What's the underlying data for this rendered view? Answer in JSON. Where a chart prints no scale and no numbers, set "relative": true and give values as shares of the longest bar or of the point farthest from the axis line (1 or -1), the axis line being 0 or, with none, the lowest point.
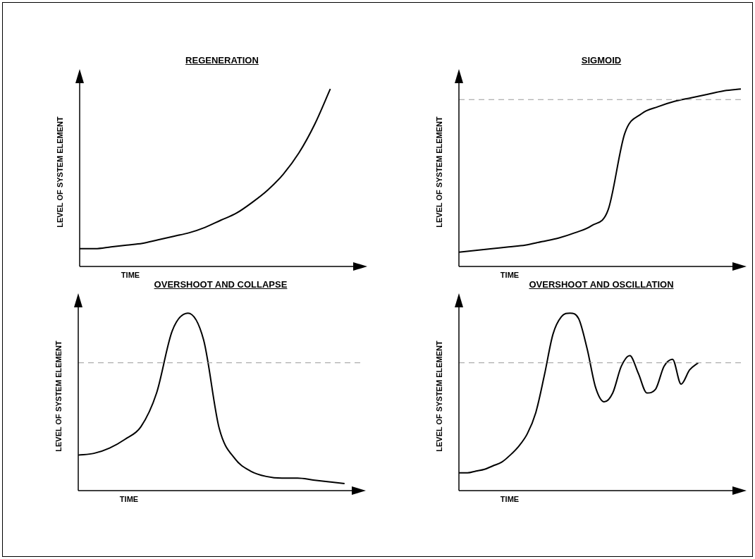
{
  "chart_data": [
    {
      "type": "line",
      "title": "REGENERATION",
      "xlabel": "TIME",
      "ylabel": "LEVEL OF SYSTEM ELEMENT",
      "relative": true,
      "legend": false,
      "grid": false,
      "marker": "none",
      "categories": [
        null,
        null,
        null,
        null,
        null,
        null,
        null,
        null,
        null,
        null,
        null,
        null,
        null,
        null,
        null,
        null,
        null,
        null,
        null
      ],
      "series": [
        {
          "color": "#000000",
          "values": [
            0.1,
            0.1,
            0.11,
            0.12,
            0.13,
            0.15,
            0.17,
            0.19,
            0.22,
            0.26,
            0.3,
            0.36,
            0.43,
            0.52,
            0.64,
            0.8,
            1,
            null,
            null
          ]
        }
      ]
    },
    {
      "type": "line",
      "title": "SIGMOID",
      "xlabel": "TIME",
      "ylabel": "LEVEL OF SYSTEM ELEMENT",
      "relative": true,
      "legend": false,
      "grid": false,
      "marker": "none",
      "categories": [
        null,
        null,
        null,
        null,
        null,
        null,
        null,
        null,
        null,
        null,
        null,
        null,
        null,
        null,
        null,
        null,
        null,
        null
      ],
      "series": [
        {
          "color": "#000000",
          "values": [
            0.08,
            0.09,
            0.1,
            0.11,
            0.12,
            0.14,
            0.16,
            0.19,
            0.23,
            0.32,
            0.75,
            0.86,
            0.9,
            0.93,
            0.95,
            0.97,
            0.99,
            1
          ]
        }
      ],
      "ref_lines": [
        {
          "axis": "y",
          "value": 0.94,
          "color": "#999999",
          "line_style": "dashed"
        }
      ]
    },
    {
      "type": "line",
      "title": "OVERSHOOT AND  COLLAPSE",
      "xlabel": "TIME",
      "ylabel": "LEVEL OF SYSTEM ELEMENT",
      "relative": true,
      "legend": false,
      "grid": false,
      "marker": "none",
      "categories": [
        null,
        null,
        null,
        null,
        null,
        null,
        null,
        null,
        null,
        null,
        null,
        null,
        null,
        null,
        null,
        null,
        null,
        null,
        null
      ],
      "series": [
        {
          "color": "#000000",
          "values": [
            0.2,
            0.21,
            0.24,
            0.29,
            0.36,
            0.55,
            0.9,
            1,
            0.85,
            0.35,
            0.18,
            0.11,
            0.08,
            0.07,
            0.07,
            0.06,
            0.05,
            0.04,
            null
          ]
        }
      ],
      "ref_lines": [
        {
          "axis": "y",
          "value": 0.72,
          "color": "#999999",
          "line_style": "dashed"
        }
      ]
    },
    {
      "type": "line",
      "title": "OVERSHOOT AND  OSCILLATION",
      "xlabel": "TIME",
      "ylabel": "LEVEL OF SYSTEM ELEMENT",
      "relative": true,
      "legend": false,
      "grid": false,
      "marker": "none",
      "categories": [
        null,
        null,
        null,
        null,
        null,
        null,
        null,
        null,
        null,
        null,
        null,
        null,
        null,
        null,
        null,
        null,
        null,
        null,
        null,
        null,
        null,
        null,
        null,
        null,
        null,
        null,
        null,
        null,
        null,
        null,
        null,
        null,
        null,
        null
      ],
      "series": [
        {
          "color": "#000000",
          "values": [
            0.1,
            0.1,
            0.11,
            0.12,
            0.14,
            0.16,
            0.2,
            0.25,
            0.32,
            0.44,
            0.65,
            0.88,
            0.98,
            1,
            0.97,
            0.8,
            0.58,
            0.5,
            0.55,
            0.7,
            0.76,
            0.66,
            0.55,
            0.57,
            0.7,
            0.74,
            0.6,
            0.68,
            0.72,
            null,
            null,
            null,
            null,
            null
          ]
        }
      ],
      "ref_lines": [
        {
          "axis": "y",
          "value": 0.72,
          "color": "#999999",
          "line_style": "dashed"
        }
      ]
    }
  ]
}
